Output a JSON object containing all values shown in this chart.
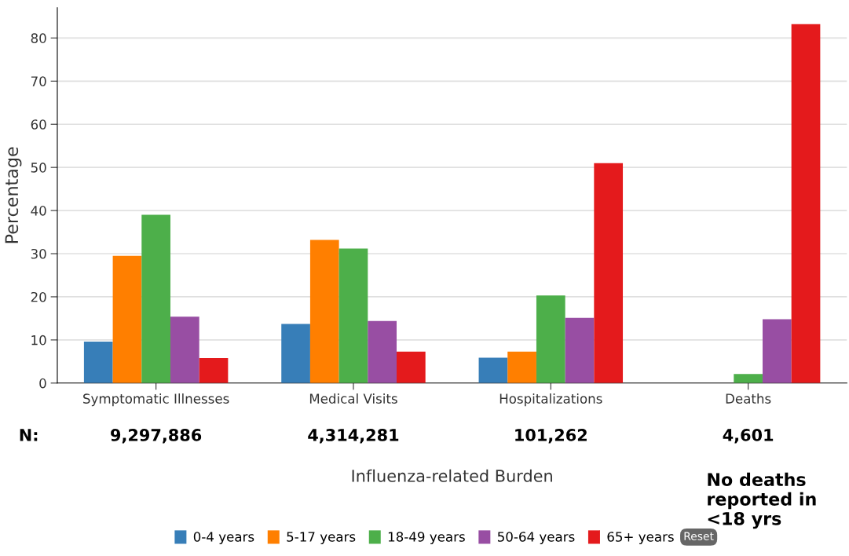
{
  "chart_data": {
    "type": "bar",
    "xlabel": "Influenza-related Burden",
    "ylabel": "Percentage",
    "categories": [
      "Symptomatic Illnesses",
      "Medical Visits",
      "Hospitalizations",
      "Deaths"
    ],
    "series": [
      {
        "name": "0-4 years",
        "color": "#377eb8",
        "values": [
          9.6,
          13.7,
          5.9,
          0
        ]
      },
      {
        "name": "5-17 years",
        "color": "#ff7f00",
        "values": [
          29.5,
          33.2,
          7.3,
          0
        ]
      },
      {
        "name": "18-49 years",
        "color": "#4daf4a",
        "values": [
          39.0,
          31.2,
          20.3,
          2.1
        ]
      },
      {
        "name": "50-64 years",
        "color": "#984ea3",
        "values": [
          15.4,
          14.4,
          15.1,
          14.8
        ]
      },
      {
        "name": "65+ years",
        "color": "#e41a1c",
        "values": [
          5.8,
          7.3,
          51.0,
          83.2
        ]
      }
    ],
    "ylim": [
      0,
      87
    ],
    "yticks": [
      0,
      10,
      20,
      30,
      40,
      50,
      60,
      70,
      80
    ],
    "grid": "y",
    "legend": "bottom",
    "annotations": [
      "N:",
      "9,297,886",
      "4,314,281",
      "101,262",
      "4,601",
      "No deaths reported in <18 yrs",
      "Reset"
    ]
  }
}
